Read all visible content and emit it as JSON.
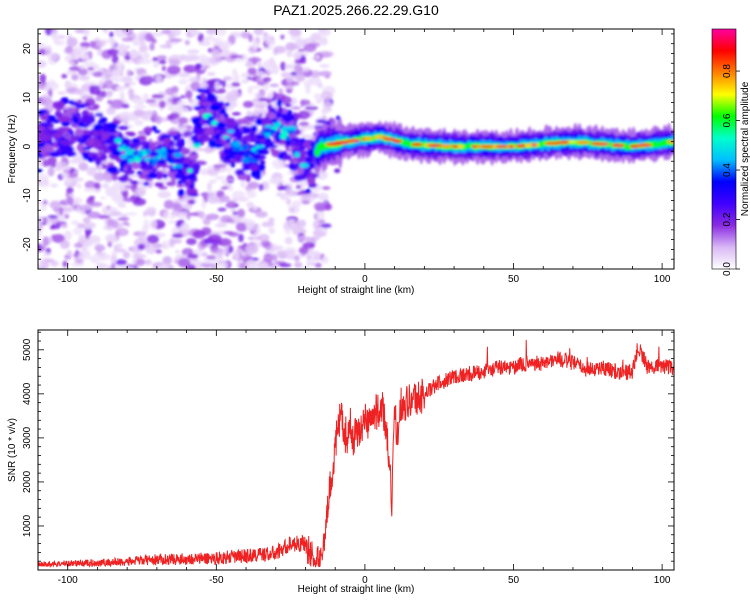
{
  "figure": {
    "title": "PAZ1.2025.266.22.29.G10"
  },
  "chart_data": [
    {
      "type": "heatmap",
      "xlabel": "Height of straight line (km)",
      "ylabel": "Frequency (Hz)",
      "xlim": [
        -110,
        104
      ],
      "ylim": [
        -25,
        24
      ],
      "xticks": [
        -100,
        -50,
        0,
        50,
        100
      ],
      "yticks": [
        -20,
        -10,
        0,
        10,
        20
      ],
      "colorbar": {
        "label": "Normalized spectral amplitude",
        "range": [
          0,
          0.97
        ],
        "ticks": [
          0.0,
          0.2,
          0.4,
          0.6,
          0.8
        ],
        "tick_labels": [
          "0.0",
          "0.2",
          "0.4",
          "0.6",
          "0.8"
        ],
        "colormap": [
          "#ffffff",
          "#d9b8f5",
          "#8a2be2",
          "#4000ff",
          "#0000ff",
          "#00bfff",
          "#00ffcc",
          "#00ff00",
          "#ffff00",
          "#ff8000",
          "#ff0000",
          "#ff00a0"
        ]
      },
      "ridge": {
        "description_points": [
          {
            "x": -105,
            "y": 3
          },
          {
            "x": -95,
            "y": 4
          },
          {
            "x": -85,
            "y": 1
          },
          {
            "x": -80,
            "y": -2
          },
          {
            "x": -72,
            "y": -2
          },
          {
            "x": -65,
            "y": -2
          },
          {
            "x": -58,
            "y": -6
          },
          {
            "x": -55,
            "y": 8
          },
          {
            "x": -48,
            "y": 4
          },
          {
            "x": -42,
            "y": 0
          },
          {
            "x": -38,
            "y": -3
          },
          {
            "x": -32,
            "y": 4
          },
          {
            "x": -25,
            "y": 3
          },
          {
            "x": -20,
            "y": -5
          },
          {
            "x": -15,
            "y": 0
          },
          {
            "x": -8,
            "y": 0.8
          },
          {
            "x": 5,
            "y": 2
          },
          {
            "x": 15,
            "y": 0.5
          },
          {
            "x": 30,
            "y": 0
          },
          {
            "x": 50,
            "y": 0
          },
          {
            "x": 70,
            "y": 1
          },
          {
            "x": 90,
            "y": 0
          },
          {
            "x": 104,
            "y": 1
          }
        ]
      }
    },
    {
      "type": "line",
      "xlabel": "Height of straight line (km)",
      "ylabel": "SNR (10 * v/v)",
      "xlim": [
        -110,
        104
      ],
      "ylim": [
        0,
        5450
      ],
      "xticks": [
        -100,
        -50,
        0,
        50,
        100
      ],
      "yticks": [
        1000,
        2000,
        3000,
        4000,
        5000
      ],
      "color": "#ee2222",
      "series": [
        {
          "x": [
            -110,
            -100,
            -90,
            -80,
            -70,
            -60,
            -50,
            -40,
            -30,
            -25,
            -20,
            -17,
            -15,
            -13,
            -12,
            -11,
            -10,
            -9,
            -8,
            -7,
            -6,
            -5,
            -4,
            -3,
            -2,
            -1,
            0,
            2,
            4,
            6,
            8,
            9,
            10,
            11,
            12,
            14,
            16,
            18,
            20,
            25,
            30,
            35,
            40,
            45,
            50,
            55,
            60,
            65,
            70,
            75,
            80,
            85,
            90,
            92,
            95,
            100,
            104
          ],
          "values": [
            130,
            150,
            160,
            190,
            240,
            250,
            270,
            320,
            380,
            600,
            600,
            200,
            200,
            1000,
            1800,
            2200,
            2800,
            3200,
            3500,
            3100,
            3050,
            3300,
            3000,
            3100,
            3200,
            3200,
            3400,
            3400,
            3600,
            3700,
            2600,
            1500,
            3500,
            3100,
            3800,
            3800,
            3900,
            3900,
            4000,
            4250,
            4400,
            4450,
            4500,
            4600,
            4600,
            4700,
            4700,
            4800,
            4700,
            4550,
            4600,
            4500,
            4500,
            5100,
            4600,
            4650,
            4550
          ]
        }
      ]
    }
  ]
}
